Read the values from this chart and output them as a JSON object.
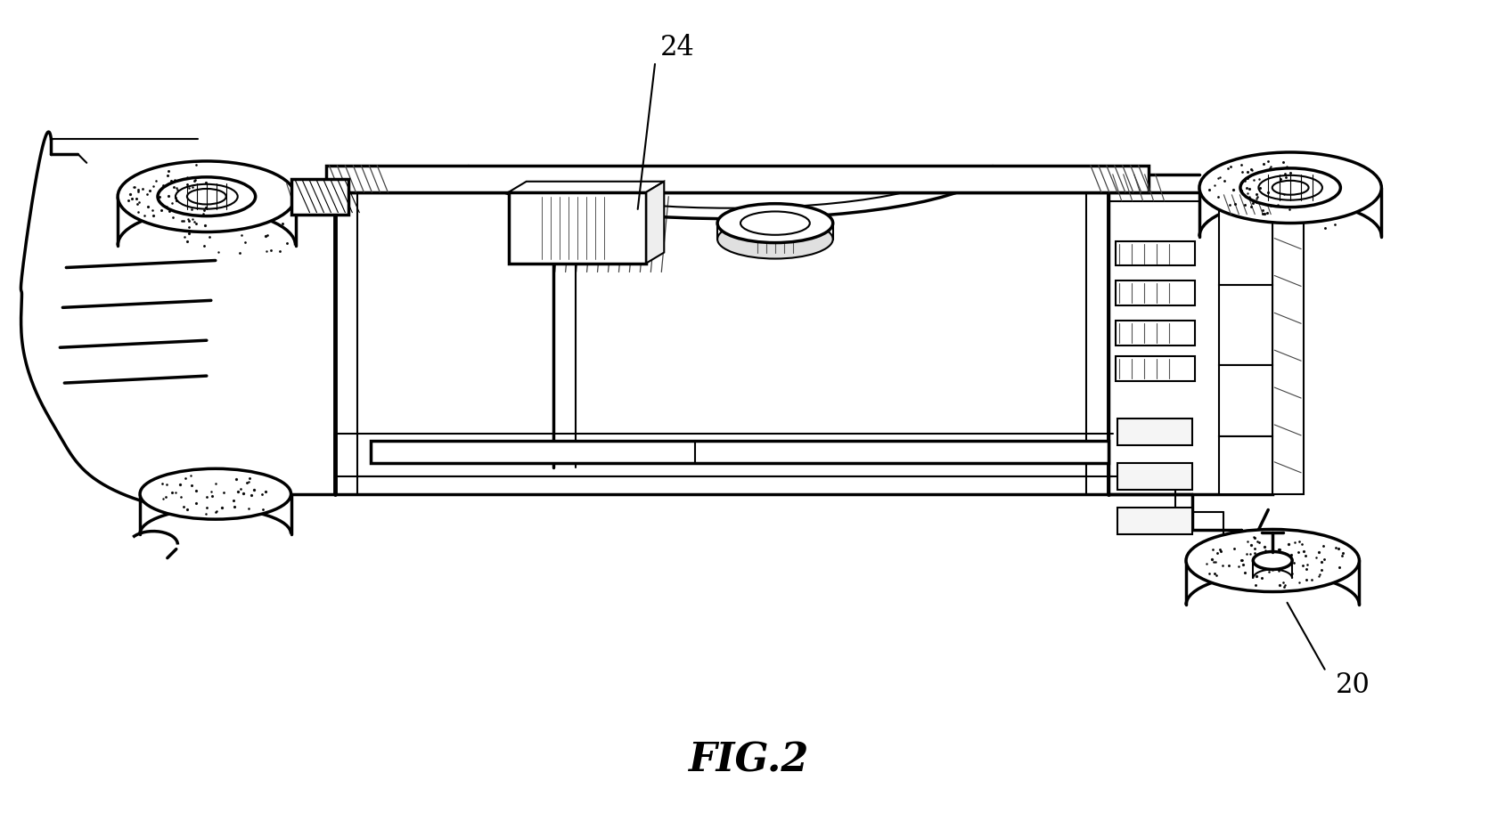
{
  "title": "FIG.2",
  "label_24": "24",
  "label_20": "20",
  "bg_color": "#ffffff",
  "line_color": "#000000",
  "title_fontsize": 32,
  "label_fontsize": 22,
  "fig_width": 16.81,
  "fig_height": 9.22,
  "dpi": 100
}
